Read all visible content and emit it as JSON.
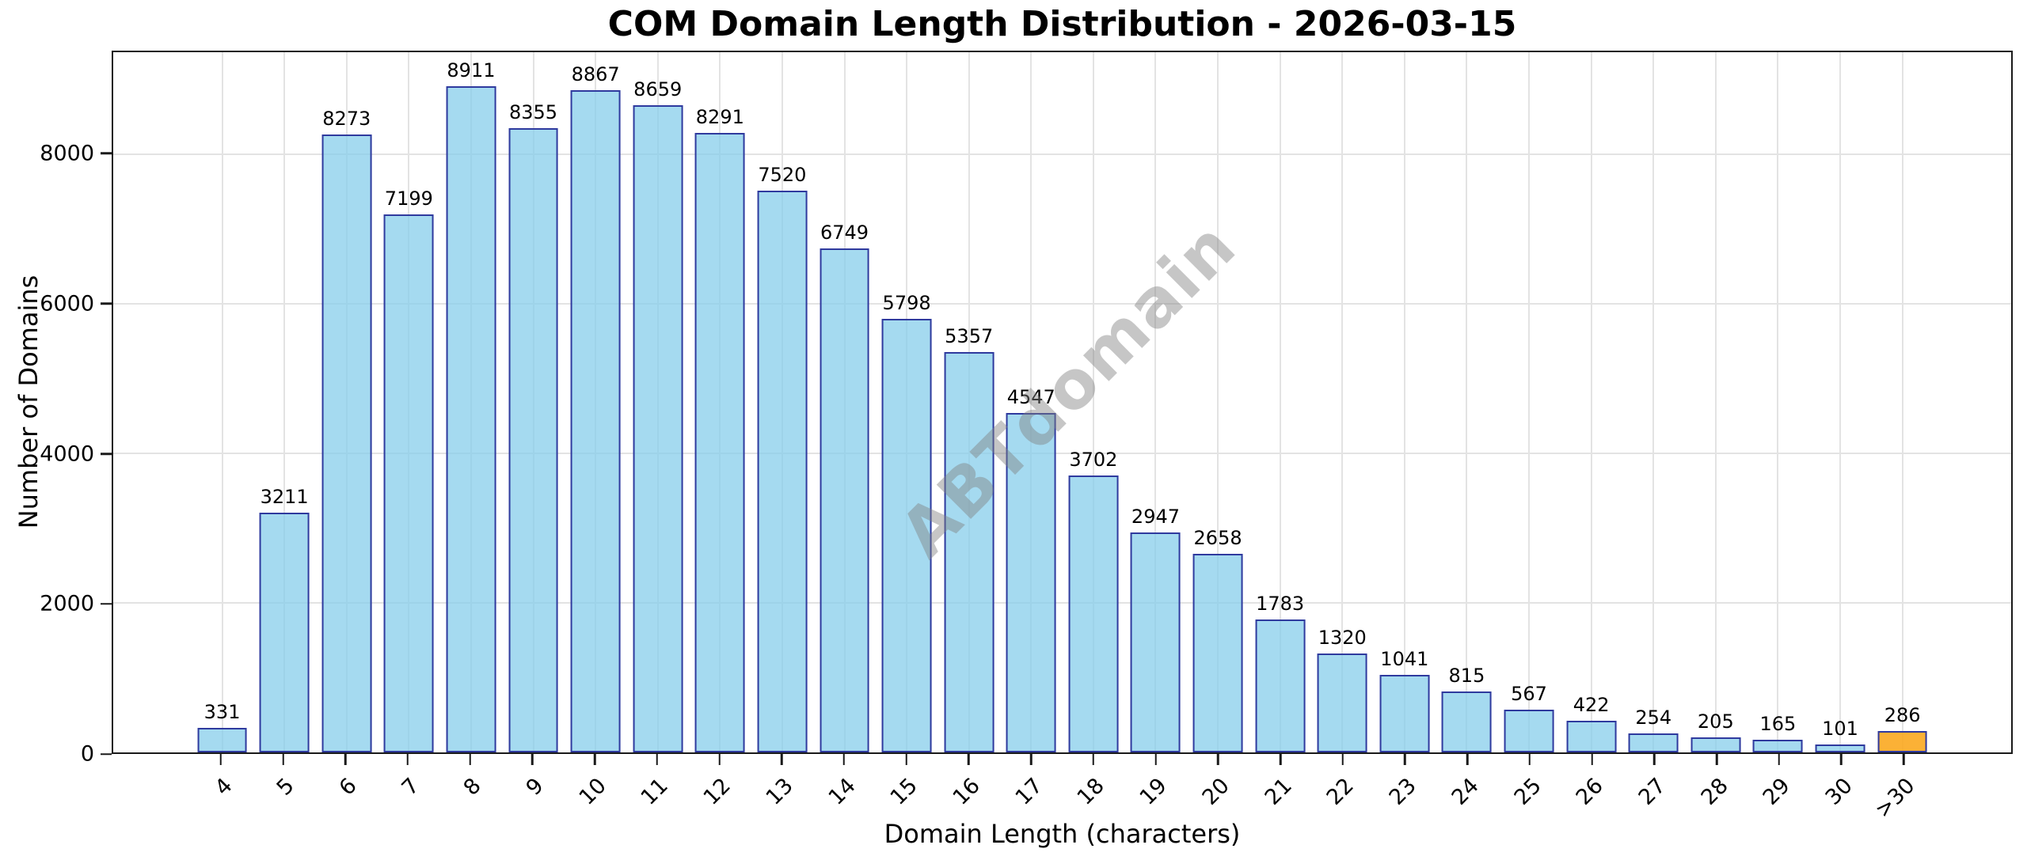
{
  "chart_data": {
    "type": "bar",
    "title": "COM Domain Length Distribution - 2026-03-15",
    "xlabel": "Domain Length (characters)",
    "ylabel": "Number of Domains",
    "categories": [
      "4",
      "5",
      "6",
      "7",
      "8",
      "9",
      "10",
      "11",
      "12",
      "13",
      "14",
      "15",
      "16",
      "17",
      "18",
      "19",
      "20",
      "21",
      "22",
      "23",
      "24",
      "25",
      "26",
      "27",
      "28",
      "29",
      "30",
      ">30"
    ],
    "values": [
      331,
      3211,
      8273,
      7199,
      8911,
      8355,
      8867,
      8659,
      8291,
      7520,
      6749,
      5798,
      5357,
      4547,
      3702,
      2947,
      2658,
      1783,
      1320,
      1041,
      815,
      567,
      422,
      254,
      205,
      165,
      101,
      286
    ],
    "yticks": [
      0,
      2000,
      4000,
      6000,
      8000
    ],
    "ylim": [
      0,
      9370
    ],
    "grid": true,
    "legend": "none",
    "bar_fill": "rgba(135,206,235,0.75)",
    "highlight_fill": "rgba(250,166,26,0.88)",
    "highlight_index": 27,
    "bar_edge_color": "#2f3a9e",
    "grid_color": "#e3e3e3",
    "spine_color": "#1a1a1a",
    "watermark": "ABTdomain"
  }
}
